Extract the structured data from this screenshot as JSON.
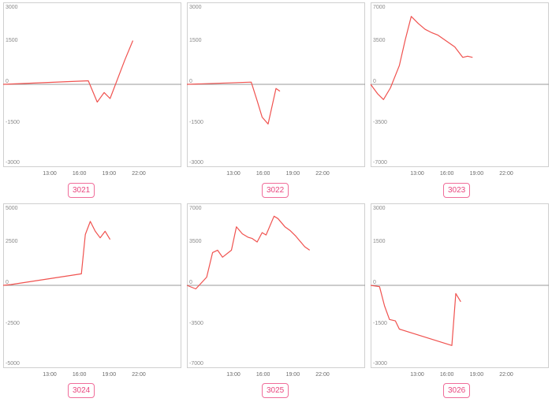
{
  "chart_data": [
    {
      "type": "line",
      "label": "3021",
      "ylim": [
        -3000,
        3000
      ],
      "yticks": [
        3000,
        1500,
        0,
        -1500,
        -3000
      ],
      "xticks": [
        "13:00",
        "16:00",
        "19:00",
        "22:00"
      ],
      "x": [
        0,
        8.6,
        9.5,
        10.2,
        10.8,
        12.3,
        13.1
      ],
      "values": [
        0,
        130,
        -650,
        -300,
        -520,
        900,
        1600
      ],
      "color": "#f0524f"
    },
    {
      "type": "line",
      "label": "3022",
      "ylim": [
        -3000,
        3000
      ],
      "yticks": [
        3000,
        1500,
        0,
        -1500,
        -3000
      ],
      "xticks": [
        "13:00",
        "16:00",
        "19:00",
        "22:00"
      ],
      "x": [
        0,
        6.5,
        7.1,
        7.6,
        8.2,
        9.0,
        9.4
      ],
      "values": [
        0,
        80,
        -600,
        -1200,
        -1450,
        -150,
        -250
      ],
      "color": "#f0524f"
    },
    {
      "type": "line",
      "label": "3023",
      "ylim": [
        -7000,
        7000
      ],
      "yticks": [
        7000,
        3500,
        0,
        -3500,
        -7000
      ],
      "xticks": [
        "13:00",
        "16:00",
        "19:00",
        "22:00"
      ],
      "x": [
        0,
        0.7,
        1.3,
        2.0,
        2.9,
        3.5,
        4.1,
        4.8,
        5.5,
        6.2,
        6.8,
        8.5,
        9.3,
        9.8,
        10.3
      ],
      "values": [
        0,
        -800,
        -1300,
        -300,
        1600,
        3800,
        5800,
        5200,
        4700,
        4400,
        4200,
        3200,
        2300,
        2400,
        2300
      ],
      "color": "#f0524f"
    },
    {
      "type": "line",
      "label": "3024",
      "ylim": [
        -5000,
        5000
      ],
      "yticks": [
        5000,
        2500,
        0,
        -2500,
        -5000
      ],
      "xticks": [
        "13:00",
        "16:00",
        "19:00",
        "22:00"
      ],
      "x": [
        0,
        0.8,
        7.9,
        8.3,
        8.8,
        9.3,
        9.8,
        10.3,
        10.8
      ],
      "values": [
        0,
        50,
        700,
        3100,
        3900,
        3300,
        2900,
        3300,
        2800
      ],
      "color": "#f0524f"
    },
    {
      "type": "line",
      "label": "3025",
      "ylim": [
        -7000,
        7000
      ],
      "yticks": [
        7000,
        3500,
        0,
        -3500,
        -7000
      ],
      "xticks": [
        "13:00",
        "16:00",
        "19:00",
        "22:00"
      ],
      "x": [
        0,
        0.9,
        2.0,
        2.6,
        3.1,
        3.6,
        4.5,
        5.0,
        5.6,
        6.2,
        6.6,
        7.1,
        7.6,
        8.0,
        8.8,
        9.2,
        9.9,
        10.4,
        11.0,
        11.9,
        12.4
      ],
      "values": [
        0,
        -300,
        700,
        2800,
        3000,
        2400,
        3000,
        5000,
        4400,
        4100,
        4000,
        3700,
        4500,
        4300,
        5900,
        5700,
        5000,
        4700,
        4200,
        3300,
        3000
      ],
      "color": "#f0524f"
    },
    {
      "type": "line",
      "label": "3026",
      "ylim": [
        -3000,
        3000
      ],
      "yticks": [
        3000,
        1500,
        0,
        -1500,
        -3000
      ],
      "xticks": [
        "13:00",
        "16:00",
        "19:00",
        "22:00"
      ],
      "x": [
        0,
        0.9,
        1.4,
        1.9,
        2.5,
        2.9,
        8.2,
        8.6,
        9.1
      ],
      "values": [
        0,
        -50,
        -750,
        -1250,
        -1300,
        -1600,
        -2200,
        -300,
        -600
      ],
      "color": "#f0524f"
    }
  ]
}
